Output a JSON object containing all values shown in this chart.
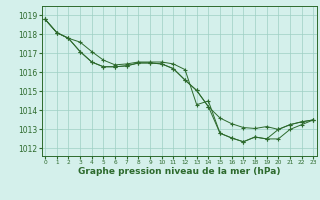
{
  "x": [
    0,
    1,
    2,
    3,
    4,
    5,
    6,
    7,
    8,
    9,
    10,
    11,
    12,
    13,
    14,
    15,
    16,
    17,
    18,
    19,
    20,
    21,
    22,
    23
  ],
  "series1": [
    1018.8,
    1018.1,
    1017.8,
    1017.6,
    1017.1,
    1016.65,
    1016.4,
    1016.45,
    1016.55,
    1016.55,
    1016.55,
    1016.45,
    1016.15,
    1014.3,
    1014.5,
    1012.8,
    1012.55,
    1012.35,
    1012.6,
    1012.5,
    1013.0,
    1013.25,
    1013.4,
    1013.5
  ],
  "series2": [
    1018.8,
    1018.1,
    1017.8,
    1017.1,
    1016.55,
    1016.3,
    1016.3,
    1016.35,
    1016.5,
    1016.5,
    1016.45,
    1016.2,
    1015.6,
    1015.05,
    1014.2,
    1013.6,
    1013.3,
    1013.1,
    1013.05,
    1013.15,
    1013.0,
    1013.25,
    1013.4,
    1013.5
  ],
  "series3": [
    1018.8,
    1018.1,
    1017.8,
    1017.1,
    1016.55,
    1016.3,
    1016.3,
    1016.35,
    1016.5,
    1016.5,
    1016.45,
    1016.2,
    1015.6,
    1015.05,
    1014.2,
    1012.8,
    1012.55,
    1012.35,
    1012.6,
    1012.5,
    1012.5,
    1013.0,
    1013.25,
    1013.5
  ],
  "bg_color": "#d4f0eb",
  "line_color": "#2d6a2d",
  "grid_color": "#9ecfc4",
  "xlabel": "Graphe pression niveau de la mer (hPa)",
  "yticks": [
    1012,
    1013,
    1014,
    1015,
    1016,
    1017,
    1018,
    1019
  ],
  "ylim": [
    1011.6,
    1019.5
  ],
  "xlim": [
    -0.3,
    23.3
  ]
}
